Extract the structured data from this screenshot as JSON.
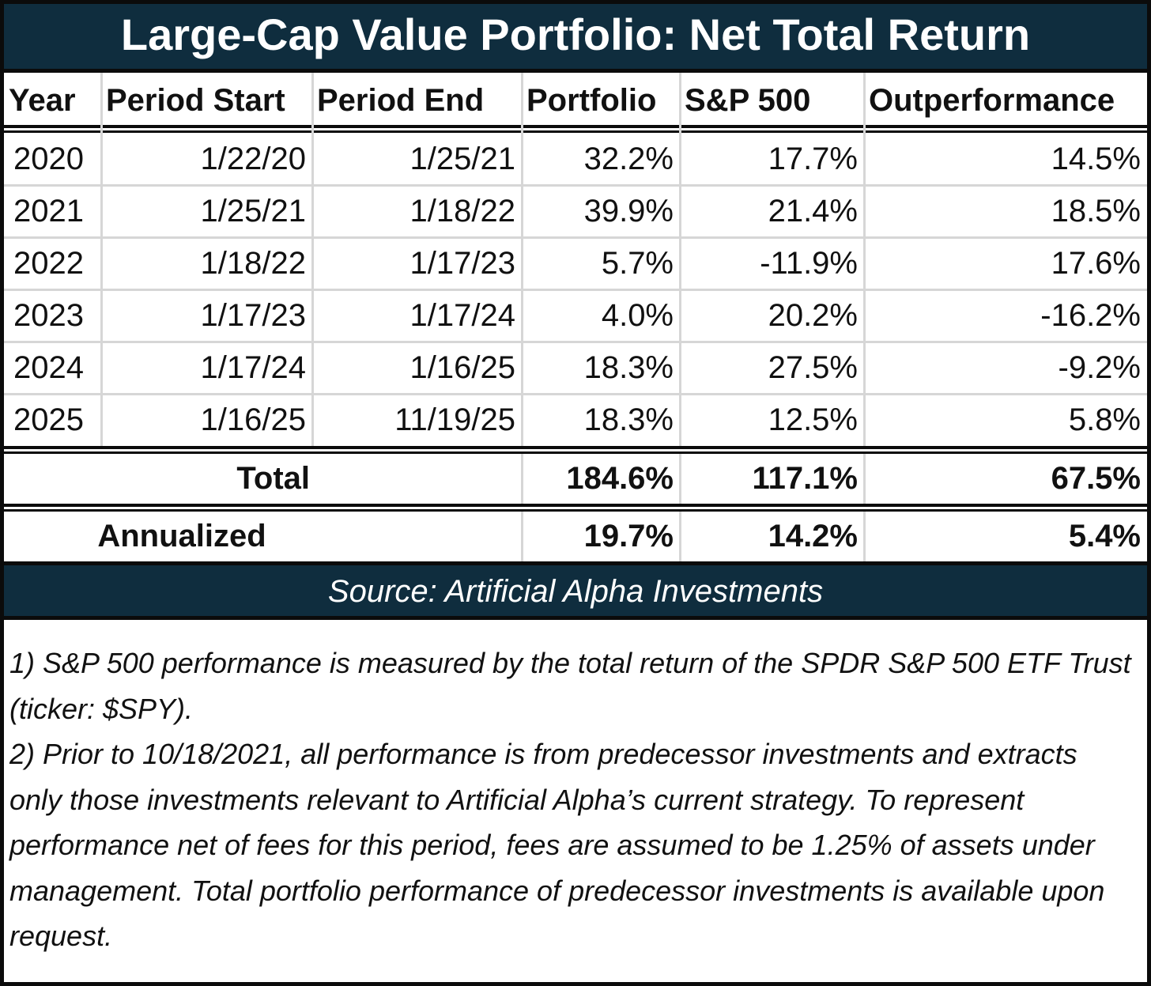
{
  "title": "Large-Cap Value Portfolio: Net Total Return",
  "columns": [
    "Year",
    "Period Start",
    "Period End",
    "Portfolio",
    "S&P 500",
    "Outperformance"
  ],
  "rows": [
    {
      "year": "2020",
      "start": "1/22/20",
      "end": "1/25/21",
      "portfolio": "32.2%",
      "sp500": "17.7%",
      "outperformance": "14.5%"
    },
    {
      "year": "2021",
      "start": "1/25/21",
      "end": "1/18/22",
      "portfolio": "39.9%",
      "sp500": "21.4%",
      "outperformance": "18.5%"
    },
    {
      "year": "2022",
      "start": "1/18/22",
      "end": "1/17/23",
      "portfolio": "5.7%",
      "sp500": "-11.9%",
      "outperformance": "17.6%"
    },
    {
      "year": "2023",
      "start": "1/17/23",
      "end": "1/17/24",
      "portfolio": "4.0%",
      "sp500": "20.2%",
      "outperformance": "-16.2%"
    },
    {
      "year": "2024",
      "start": "1/17/24",
      "end": "1/16/25",
      "portfolio": "18.3%",
      "sp500": "27.5%",
      "outperformance": "-9.2%"
    },
    {
      "year": "2025",
      "start": "1/16/25",
      "end": "11/19/25",
      "portfolio": "18.3%",
      "sp500": "12.5%",
      "outperformance": "5.8%"
    }
  ],
  "total": {
    "label": "Total",
    "portfolio": "184.6%",
    "sp500": "117.1%",
    "outperformance": "67.5%"
  },
  "annualized": {
    "label": "Annualized",
    "portfolio": "19.7%",
    "sp500": "14.2%",
    "outperformance": "5.4%"
  },
  "source": "Source: Artificial Alpha Investments",
  "notes": [
    "1) S&P 500 performance is measured by the total return of the SPDR S&P 500 ETF Trust (ticker: $SPY).",
    "2) Prior to 10/18/2021, all performance is from predecessor investments and extracts only those investments relevant to Artificial Alpha’s current strategy.  To represent performance net of fees for this period, fees are assumed to be 1.25% of assets under management.  Total portfolio performance of predecessor investments is available upon request."
  ],
  "colors": {
    "header_bg": "#0f2d3e",
    "border": "#0b0b0b",
    "gridline": "#d6d6d6"
  }
}
